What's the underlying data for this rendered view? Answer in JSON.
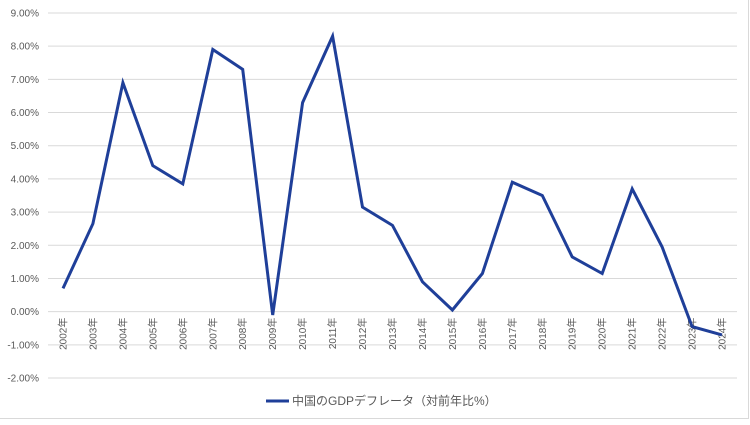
{
  "chart_data": {
    "type": "line",
    "title": "",
    "xlabel": "",
    "ylabel": "",
    "categories": [
      "2002年",
      "2003年",
      "2004年",
      "2005年",
      "2006年",
      "2007年",
      "2008年",
      "2009年",
      "2010年",
      "2011年",
      "2012年",
      "2013年",
      "2014年",
      "2015年",
      "2016年",
      "2017年",
      "2018年",
      "2019年",
      "2020年",
      "2021年",
      "2022年",
      "2023年",
      "2024年"
    ],
    "series": [
      {
        "name": "中国のGDPデフレータ（対前年比%）",
        "color": "#1f3f99",
        "values": [
          0.7,
          2.65,
          6.9,
          4.4,
          3.85,
          7.9,
          7.3,
          -0.1,
          6.3,
          8.3,
          3.15,
          2.6,
          0.9,
          0.05,
          1.15,
          3.9,
          3.5,
          1.65,
          1.15,
          3.7,
          1.95,
          -0.45,
          -0.7
        ]
      }
    ],
    "ylim": [
      -2,
      9
    ],
    "y_ticks": [
      9,
      8,
      7,
      6,
      5,
      4,
      3,
      2,
      1,
      0,
      -1,
      -2
    ],
    "y_tick_labels": [
      "9.00%",
      "8.00%",
      "7.00%",
      "6.00%",
      "5.00%",
      "4.00%",
      "3.00%",
      "2.00%",
      "1.00%",
      "0.00%",
      "-1.00%",
      "-2.00%"
    ],
    "grid": true,
    "legend_position": "bottom"
  },
  "legend": {
    "label": "中国のGDPデフレータ（対前年比%）"
  },
  "colors": {
    "line": "#1f3f99",
    "grid": "#d9d9d9",
    "text": "#595959"
  }
}
